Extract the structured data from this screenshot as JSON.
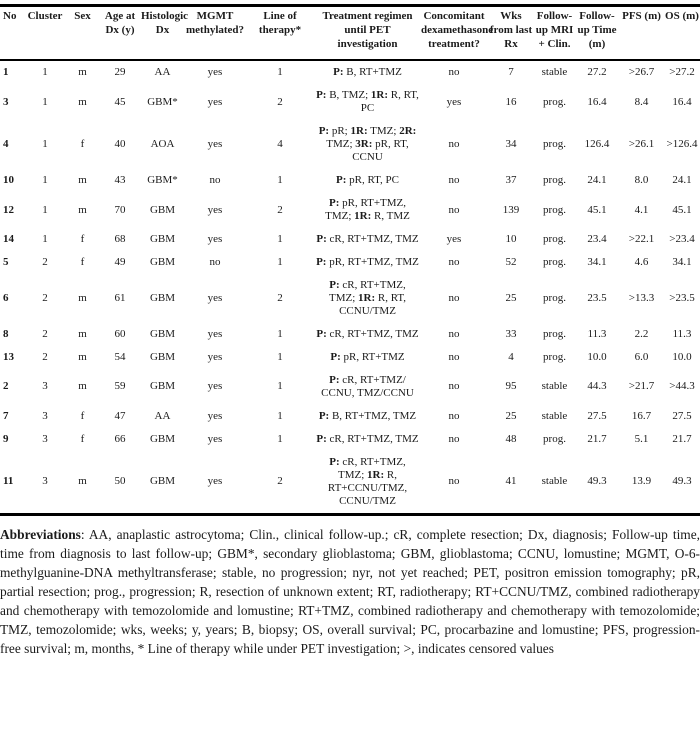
{
  "table": {
    "columns": [
      {
        "key": "no",
        "label": "No",
        "width": 25
      },
      {
        "key": "cluster",
        "label": "Cluster",
        "width": 40
      },
      {
        "key": "sex",
        "label": "Sex",
        "width": 35
      },
      {
        "key": "age",
        "label": "Age at Dx (y)",
        "width": 40
      },
      {
        "key": "hist",
        "label": "Histologic Dx",
        "width": 45
      },
      {
        "key": "mgmt",
        "label": "MGMT methylated?",
        "width": 60
      },
      {
        "key": "line",
        "label": "Line of therapy*",
        "width": 70
      },
      {
        "key": "treatment",
        "label": "Treatment regimen until PET investigation",
        "width": 105
      },
      {
        "key": "dex",
        "label": "Concomitant dexamethasone treatment?",
        "width": 68
      },
      {
        "key": "wks",
        "label": "Wks from last Rx",
        "width": 46
      },
      {
        "key": "fu",
        "label": "Follow-up MRI + Clin.",
        "width": 41
      },
      {
        "key": "futime",
        "label": "Follow-up Time (m)",
        "width": 44
      },
      {
        "key": "pfs",
        "label": "PFS (m)",
        "width": 45
      },
      {
        "key": "os",
        "label": "OS (m)",
        "width": 36
      }
    ],
    "rows": [
      {
        "no": "1",
        "cluster": "1",
        "sex": "m",
        "age": "29",
        "hist": "AA",
        "mgmt": "yes",
        "line": "1",
        "treatment": "**P:** B, RT+TMZ",
        "dex": "no",
        "wks": "7",
        "fu": "stable",
        "futime": "27.2",
        "pfs": ">26.7",
        "os": ">27.2"
      },
      {
        "no": "3",
        "cluster": "1",
        "sex": "m",
        "age": "45",
        "hist": "GBM*",
        "mgmt": "yes",
        "line": "2",
        "treatment": "**P:** B, TMZ; **1R:** R, RT, PC",
        "dex": "yes",
        "wks": "16",
        "fu": "prog.",
        "futime": "16.4",
        "pfs": "8.4",
        "os": "16.4"
      },
      {
        "no": "4",
        "cluster": "1",
        "sex": "f",
        "age": "40",
        "hist": "AOA",
        "mgmt": "yes",
        "line": "4",
        "treatment": "**P:** pR; **1R:** TMZ; **2R:** TMZ; **3R:** pR, RT, CCNU",
        "dex": "no",
        "wks": "34",
        "fu": "prog.",
        "futime": "126.4",
        "pfs": ">26.1",
        "os": ">126.4"
      },
      {
        "no": "10",
        "cluster": "1",
        "sex": "m",
        "age": "43",
        "hist": "GBM*",
        "mgmt": "no",
        "line": "1",
        "treatment": "**P:** pR, RT, PC",
        "dex": "no",
        "wks": "37",
        "fu": "prog.",
        "futime": "24.1",
        "pfs": "8.0",
        "os": "24.1"
      },
      {
        "no": "12",
        "cluster": "1",
        "sex": "m",
        "age": "70",
        "hist": "GBM",
        "mgmt": "yes",
        "line": "2",
        "treatment": "**P:** pR, RT+TMZ, TMZ; **1R:** R, TMZ",
        "dex": "no",
        "wks": "139",
        "fu": "prog.",
        "futime": "45.1",
        "pfs": "4.1",
        "os": "45.1"
      },
      {
        "no": "14",
        "cluster": "1",
        "sex": "f",
        "age": "68",
        "hist": "GBM",
        "mgmt": "yes",
        "line": "1",
        "treatment": "**P:** cR, RT+TMZ, TMZ",
        "dex": "yes",
        "wks": "10",
        "fu": "prog.",
        "futime": "23.4",
        "pfs": ">22.1",
        "os": ">23.4"
      },
      {
        "no": "5",
        "cluster": "2",
        "sex": "f",
        "age": "49",
        "hist": "GBM",
        "mgmt": "no",
        "line": "1",
        "treatment": "**P:** pR, RT+TMZ, TMZ",
        "dex": "no",
        "wks": "52",
        "fu": "prog.",
        "futime": "34.1",
        "pfs": "4.6",
        "os": "34.1"
      },
      {
        "no": "6",
        "cluster": "2",
        "sex": "m",
        "age": "61",
        "hist": "GBM",
        "mgmt": "yes",
        "line": "2",
        "treatment": "**P:** cR, RT+TMZ, TMZ; **1R:** R, RT, CCNU/TMZ",
        "dex": "no",
        "wks": "25",
        "fu": "prog.",
        "futime": "23.5",
        "pfs": ">13.3",
        "os": ">23.5"
      },
      {
        "no": "8",
        "cluster": "2",
        "sex": "m",
        "age": "60",
        "hist": "GBM",
        "mgmt": "yes",
        "line": "1",
        "treatment": "**P:** cR, RT+TMZ, TMZ",
        "dex": "no",
        "wks": "33",
        "fu": "prog.",
        "futime": "11.3",
        "pfs": "2.2",
        "os": "11.3"
      },
      {
        "no": "13",
        "cluster": "2",
        "sex": "m",
        "age": "54",
        "hist": "GBM",
        "mgmt": "yes",
        "line": "1",
        "treatment": "**P:** pR, RT+TMZ",
        "dex": "no",
        "wks": "4",
        "fu": "prog.",
        "futime": "10.0",
        "pfs": "6.0",
        "os": "10.0"
      },
      {
        "no": "2",
        "cluster": "3",
        "sex": "m",
        "age": "59",
        "hist": "GBM",
        "mgmt": "yes",
        "line": "1",
        "treatment": "**P:** cR, RT+TMZ/CCNU, TMZ/CCNU",
        "dex": "no",
        "wks": "95",
        "fu": "stable",
        "futime": "44.3",
        "pfs": ">21.7",
        "os": ">44.3"
      },
      {
        "no": "7",
        "cluster": "3",
        "sex": "f",
        "age": "47",
        "hist": "AA",
        "mgmt": "yes",
        "line": "1",
        "treatment": "**P:** B, RT+TMZ, TMZ",
        "dex": "no",
        "wks": "25",
        "fu": "stable",
        "futime": "27.5",
        "pfs": "16.7",
        "os": "27.5"
      },
      {
        "no": "9",
        "cluster": "3",
        "sex": "f",
        "age": "66",
        "hist": "GBM",
        "mgmt": "yes",
        "line": "1",
        "treatment": "**P:** cR, RT+TMZ, TMZ",
        "dex": "no",
        "wks": "48",
        "fu": "prog.",
        "futime": "21.7",
        "pfs": "5.1",
        "os": "21.7"
      },
      {
        "no": "11",
        "cluster": "3",
        "sex": "m",
        "age": "50",
        "hist": "GBM",
        "mgmt": "yes",
        "line": "2",
        "treatment": "**P:** cR, RT+TMZ, TMZ; **1R:** R, RT+CCNU/TMZ, CCNU/TMZ",
        "dex": "no",
        "wks": "41",
        "fu": "stable",
        "futime": "49.3",
        "pfs": "13.9",
        "os": "49.3"
      }
    ]
  },
  "footer": {
    "abbrev_label": "Abbreviations",
    "abbrev_text": ": AA, anaplastic astrocytoma; Clin., clinical follow-up.; cR, complete resection; Dx, diagnosis; Follow-up time, time from diagnosis to last follow-up; GBM*, secondary glioblastoma; GBM, glioblastoma; CCNU, lomustine; MGMT, O-6-methylguanine-DNA methyltransferase; stable, no progression; nyr, not yet reached; PET, positron emission tomography; pR, partial resection; prog., progression; R, resection of unknown extent; RT, radiotherapy; RT+CCNU/TMZ, combined radiotherapy and chemotherapy with temozolomide and lomustine; RT+TMZ, combined radiotherapy and chemotherapy with temozolomide; TMZ, temozolomide; wks, weeks; y, years; B, biopsy; OS, overall survival; PC, procarbazine and lomustine; PFS, progression-free survival; m, months, * Line of therapy while under PET investigation; >, indicates censored values"
  }
}
